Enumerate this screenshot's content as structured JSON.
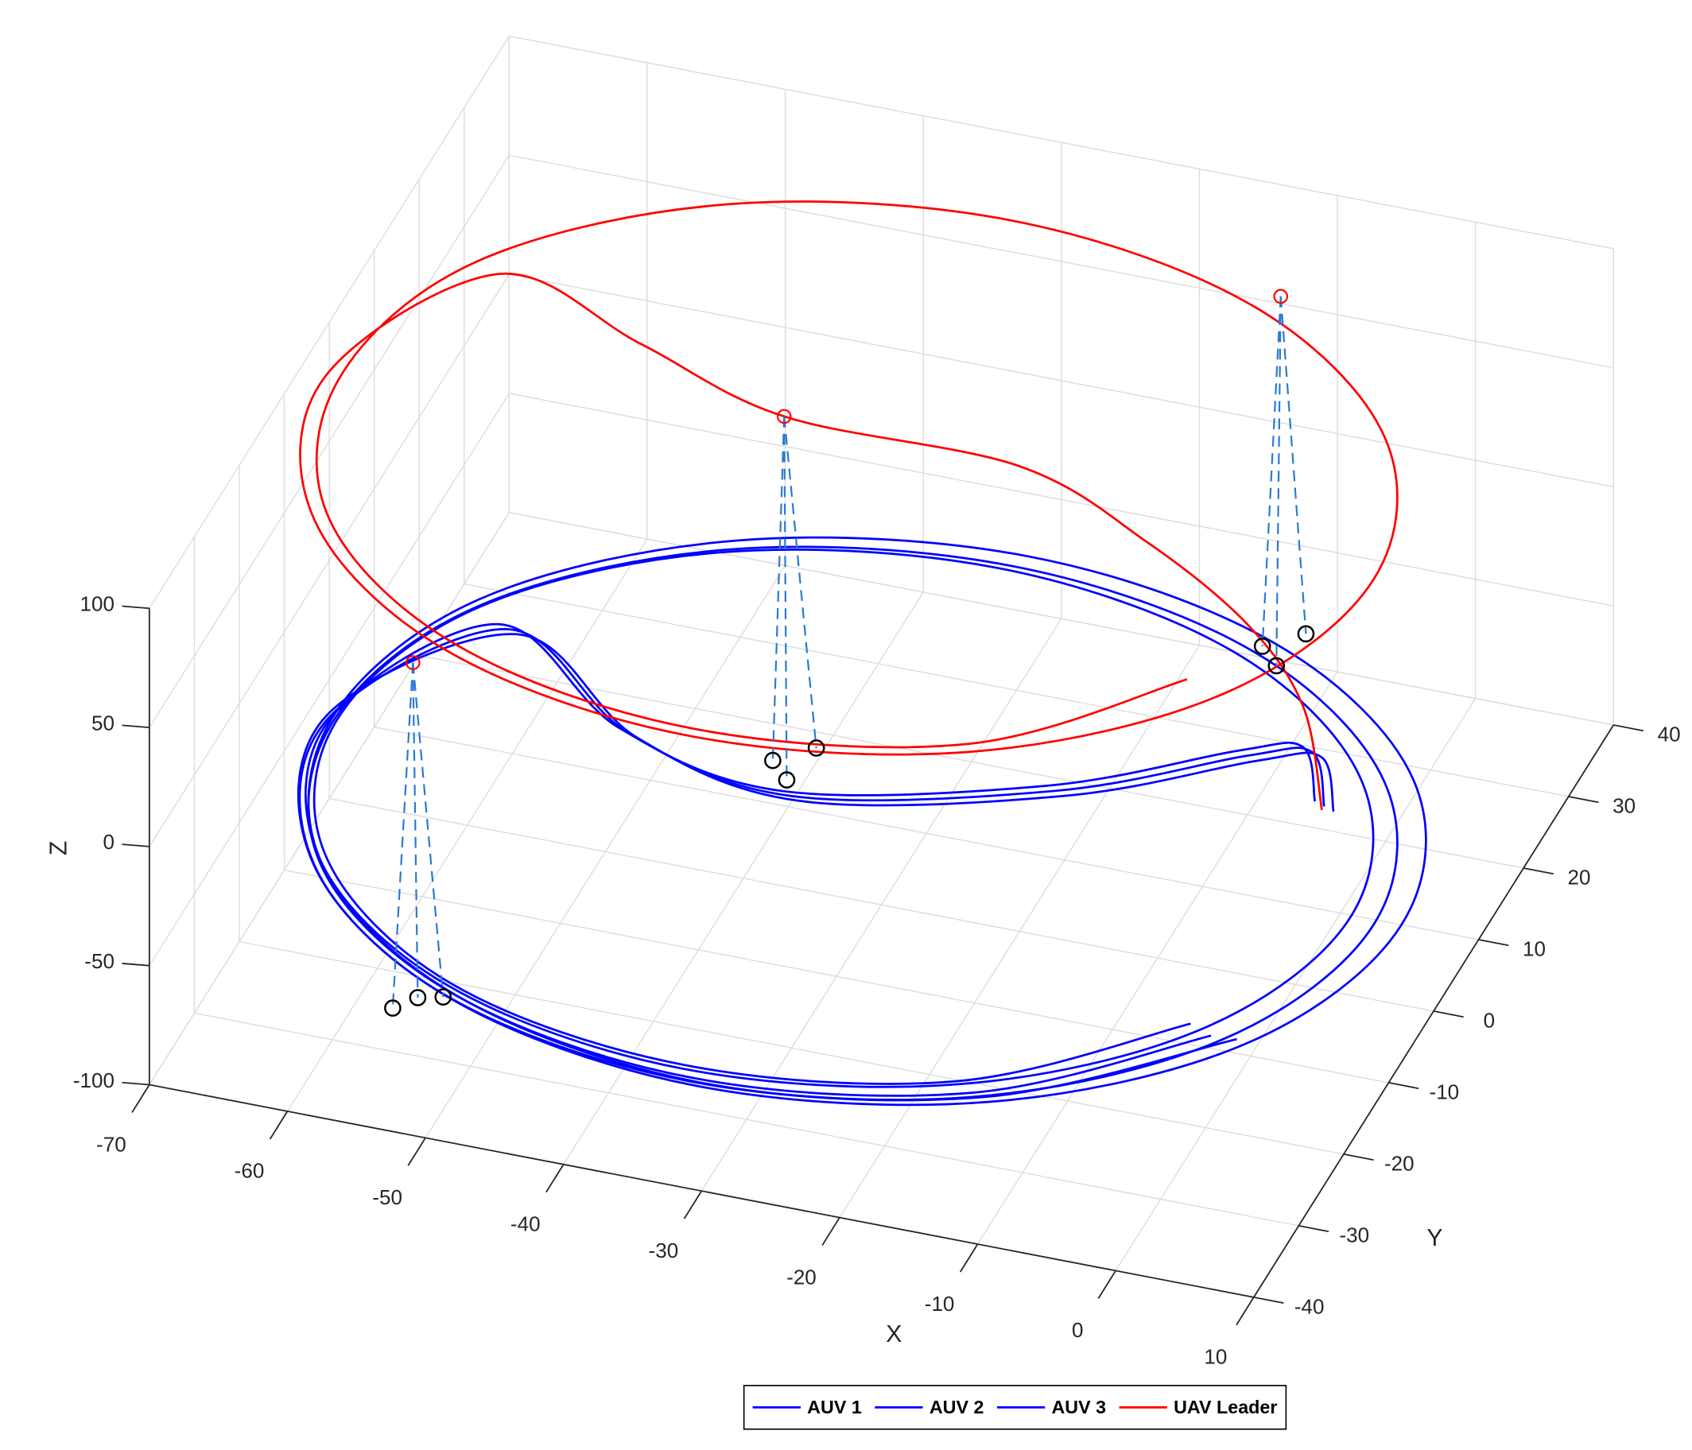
{
  "chart_data": {
    "type": "line3d",
    "xlabel": "X",
    "ylabel": "Y",
    "zlabel": "Z",
    "xlim": [
      -70,
      10
    ],
    "ylim": [
      -40,
      40
    ],
    "zlim": [
      -100,
      100
    ],
    "xticks": [
      -70,
      -60,
      -50,
      -40,
      -30,
      -20,
      -10,
      0,
      10
    ],
    "yticks": [
      -40,
      -30,
      -20,
      -10,
      0,
      10,
      20,
      30,
      40
    ],
    "zticks": [
      -100,
      -50,
      0,
      50,
      100
    ],
    "grid": true,
    "legend": "bottom",
    "series": [
      {
        "name": "AUV 1",
        "color": "#0000ff",
        "x": [
          -2,
          -5,
          -9,
          -20,
          -37,
          -50,
          -62,
          -70,
          -64.9,
          -51,
          -32,
          -13,
          0.9,
          6,
          0.9,
          -13,
          -32,
          -51,
          -64.9,
          -69.5,
          -64.5,
          -50.8,
          -32,
          -13.2,
          0
        ],
        "y": [
          12.5,
          19,
          17,
          8,
          1,
          5,
          15,
          -1,
          -19,
          -32.2,
          -37,
          -32.2,
          -19,
          -1,
          17,
          30.2,
          35,
          30.2,
          17,
          -1,
          -18.8,
          -31.7,
          -36.5,
          -31.7,
          -18.8
        ],
        "z": [
          -65,
          -65,
          -65,
          -65,
          -65,
          -65,
          -65,
          -65,
          -65,
          -65,
          -65,
          -65,
          -65,
          -65,
          -65,
          -65,
          -65,
          -65,
          -65,
          -65,
          -65,
          -65,
          -65,
          -65,
          -65
        ]
      },
      {
        "name": "AUV 2",
        "color": "#0000ff",
        "x": [
          -1,
          -4,
          -8,
          -19,
          -36,
          -49,
          -61,
          -70,
          -64.8,
          -50.5,
          -31,
          -11.5,
          2.8,
          8,
          2.8,
          -11.5,
          -31,
          -50.5,
          -64.8,
          -69.5,
          -64.3,
          -50.2,
          -31,
          -12,
          2
        ],
        "y": [
          11.5,
          18,
          16,
          7,
          0,
          4,
          14,
          -1,
          -19.5,
          -33,
          -38,
          -33,
          -19.5,
          -1,
          17.5,
          31,
          36,
          31,
          17.5,
          -1,
          -19.2,
          -32.5,
          -37.5,
          -32.5,
          -19.2
        ],
        "z": [
          -63,
          -63,
          -63,
          -63,
          -63,
          -63,
          -63,
          -63,
          -63,
          -63,
          -63,
          -63,
          -63,
          -63,
          -63,
          -63,
          -63,
          -63,
          -63,
          -63,
          -63,
          -63,
          -63,
          -63,
          -63
        ]
      },
      {
        "name": "AUV 3",
        "color": "#0000ff",
        "x": [
          -3,
          -6,
          -10,
          -21,
          -38,
          -51,
          -63,
          -70,
          -65,
          -51.5,
          -33,
          -14.5,
          -1,
          4,
          -1,
          -14.5,
          -33,
          -51.5,
          -65,
          -69.5,
          -64.6,
          -51.3,
          -33,
          -14.8,
          -2
        ],
        "y": [
          13.5,
          20,
          18,
          9,
          2,
          6,
          16,
          0,
          -17.5,
          -30.3,
          -35,
          -30.3,
          -17.5,
          0,
          17.5,
          30.3,
          35,
          30.3,
          17.5,
          0,
          -17.2,
          -30,
          -34.5,
          -30,
          -17.2
        ],
        "z": [
          -67,
          -67,
          -67,
          -67,
          -67,
          -67,
          -67,
          -67,
          -67,
          -67,
          -67,
          -67,
          -67,
          -67,
          -67,
          -67,
          -67,
          -67,
          -67,
          -67,
          -67,
          -67,
          -67,
          -67,
          -67
        ]
      },
      {
        "name": "UAV Leader",
        "color": "#ff0000",
        "x": [
          -2,
          -4,
          -8,
          -15,
          -24,
          -39,
          -51,
          -63,
          -70,
          -64.9,
          -51,
          -32,
          -13,
          0.9,
          6,
          0.9,
          -13,
          -32,
          -51,
          -64.9,
          -69,
          -64,
          -50.5,
          -32,
          -13.5,
          -2
        ],
        "y": [
          12,
          14,
          14,
          13,
          12,
          6,
          11,
          16,
          -1,
          -19,
          -32.2,
          -37,
          -32.2,
          -19,
          -1,
          17,
          30.2,
          35,
          30.2,
          17,
          -1,
          -18.5,
          -31.3,
          -36,
          -31.3,
          -18
        ],
        "z": [
          -65,
          -30,
          0,
          30,
          55,
          77,
          79,
          80,
          80,
          80,
          80,
          80,
          80,
          80,
          80,
          80,
          80,
          80,
          80,
          80,
          80,
          80,
          80,
          80,
          80,
          80
        ]
      }
    ],
    "snapshots": [
      {
        "leader": [
          -52.7,
          -34.5,
          80
        ],
        "auvs": [
          [
            -54,
            -35,
            -65
          ],
          [
            -51,
            -33,
            -63
          ],
          [
            -53,
            -32.5,
            -67
          ]
        ]
      },
      {
        "leader": [
          -39,
          6,
          77
        ],
        "auvs": [
          [
            -39.5,
            5,
            -65
          ],
          [
            -37,
            7,
            -63
          ],
          [
            -38,
            3.5,
            -67
          ]
        ]
      },
      {
        "leader": [
          -11.5,
          32,
          80
        ],
        "auvs": [
          [
            -12.5,
            31,
            -65
          ],
          [
            -10,
            33,
            -63
          ],
          [
            -11,
            29.5,
            -67
          ]
        ]
      }
    ],
    "snapshot_colors": {
      "leader": "#ff0000",
      "auv": "#000000",
      "link": "#2a7bd0"
    }
  }
}
